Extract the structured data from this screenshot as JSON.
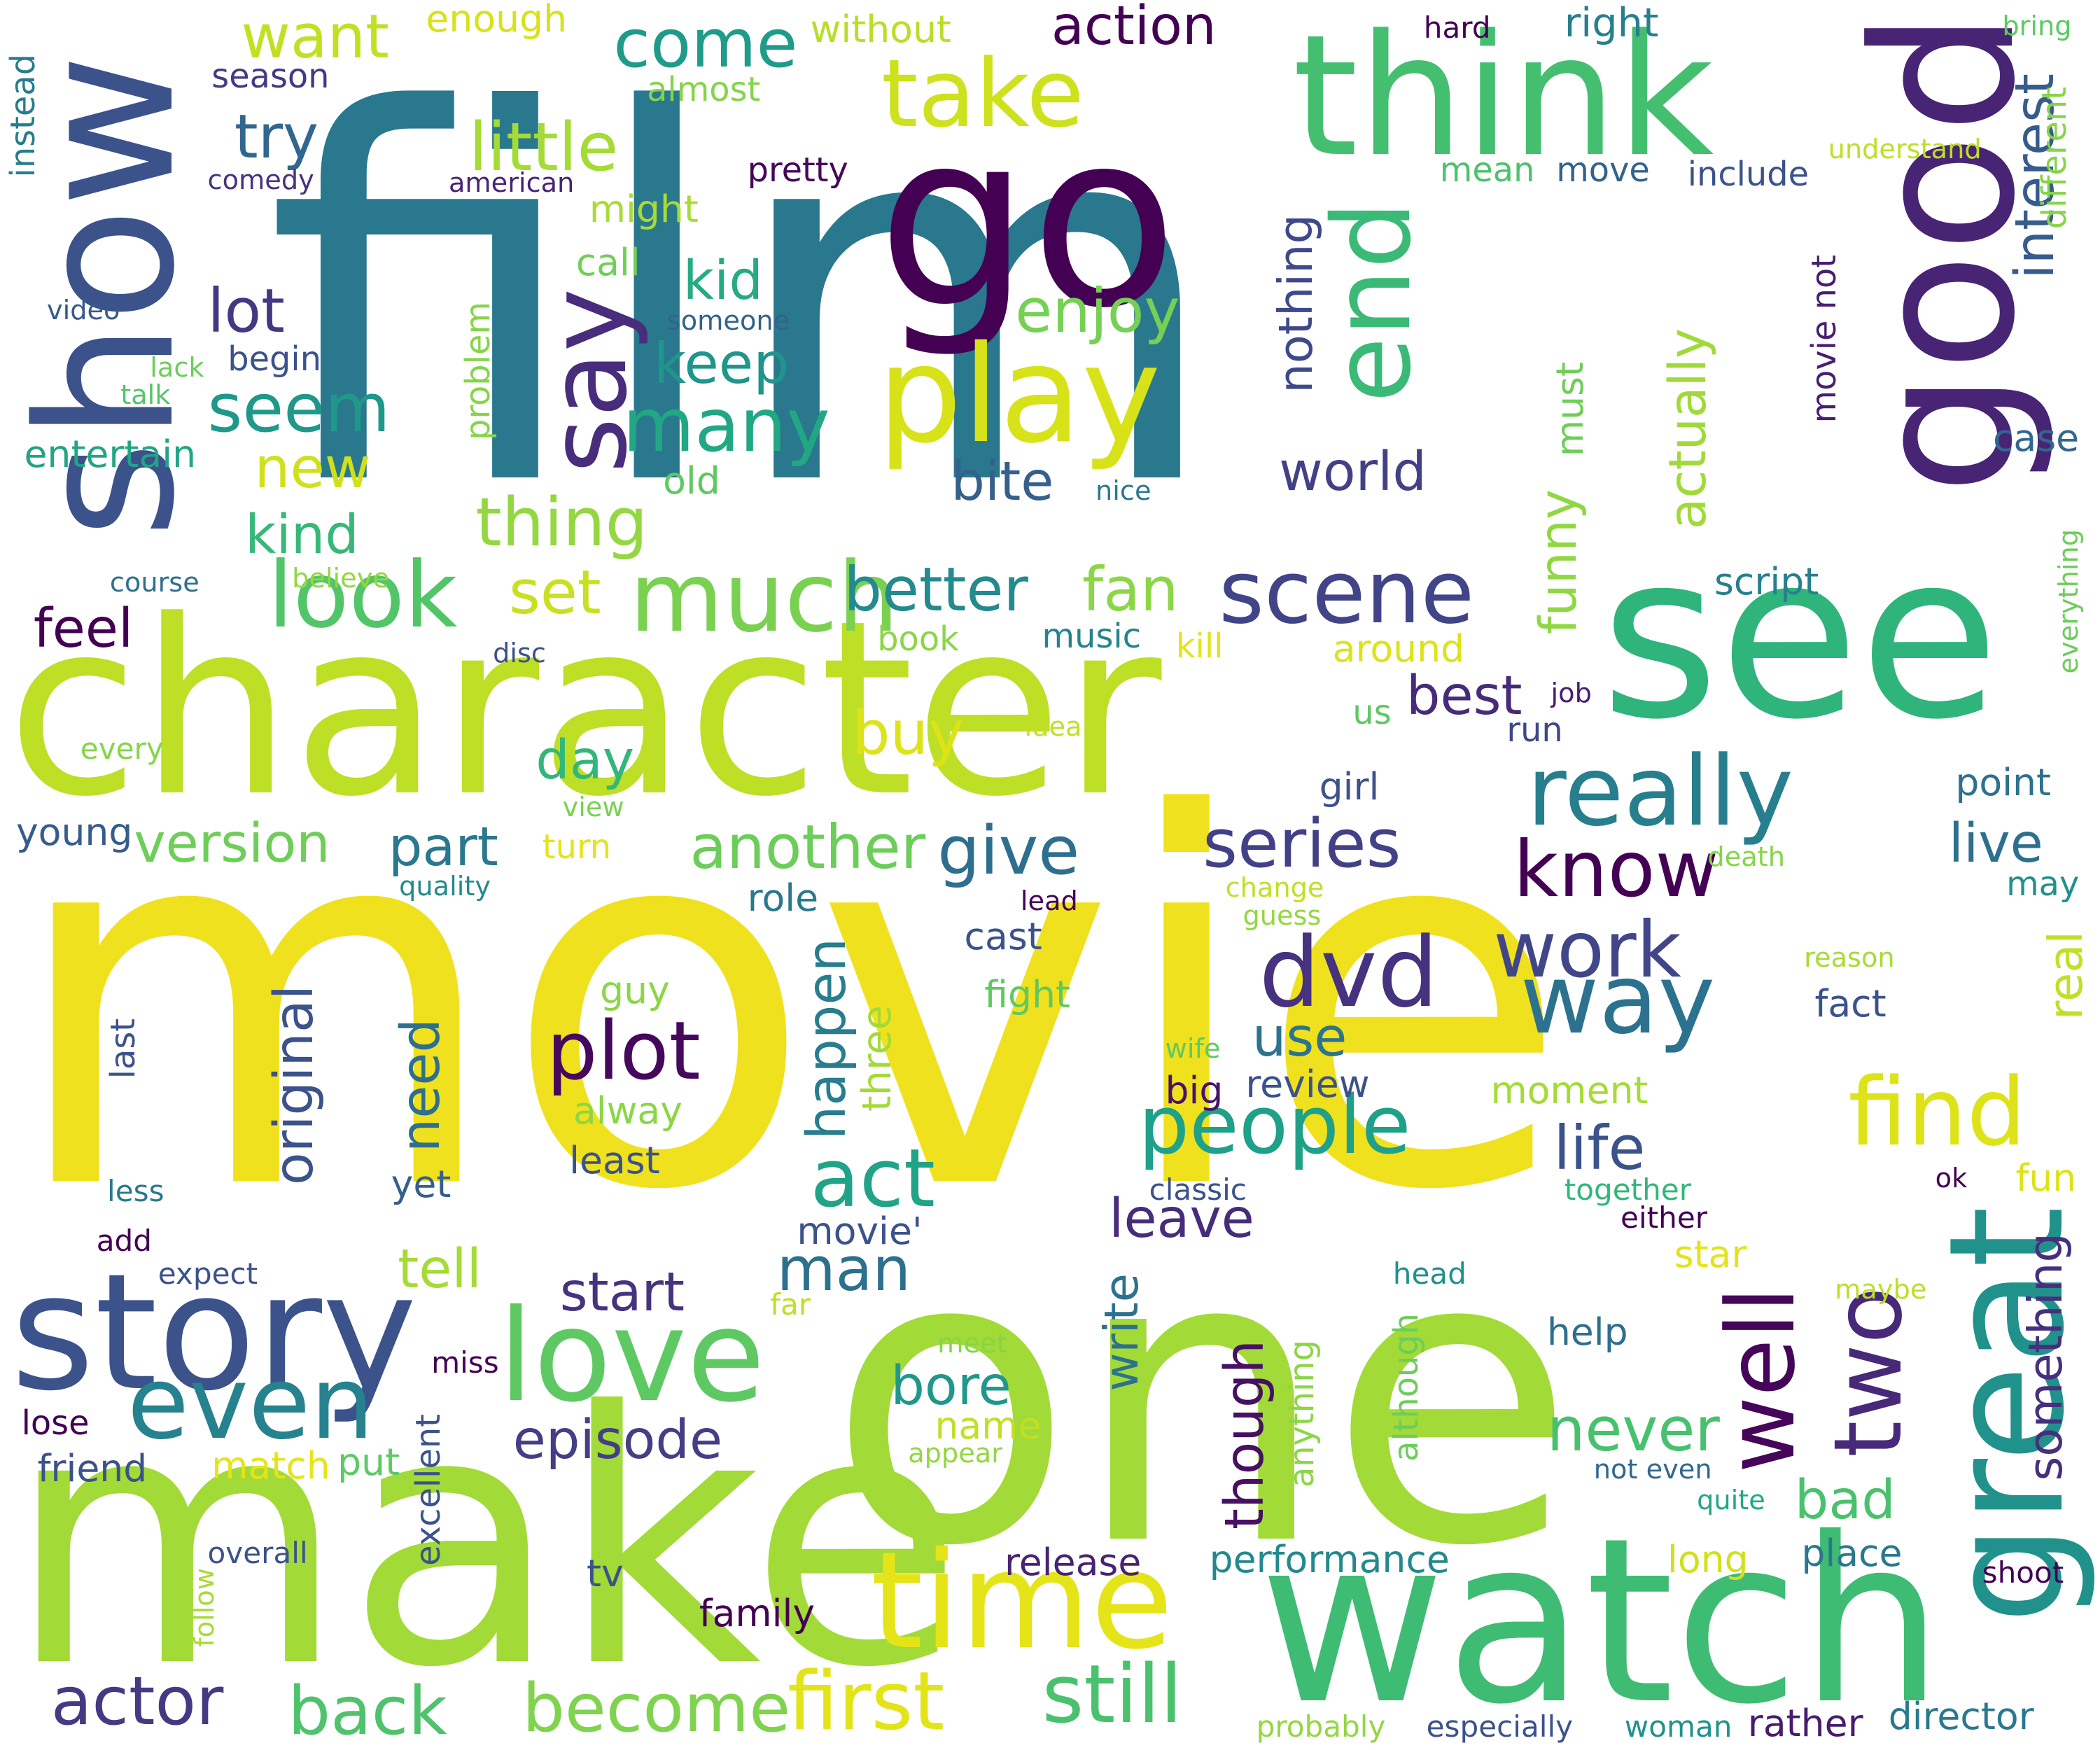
{
  "words": [
    {
      "text": "movie",
      "color": "#f0e11e"
    },
    {
      "text": "film",
      "color": "#2a788e"
    },
    {
      "text": "character",
      "color": "#bddf26"
    },
    {
      "text": "one",
      "color": "#a2da37"
    },
    {
      "text": "make",
      "color": "#a2da37"
    },
    {
      "text": "watch",
      "color": "#3fbc73"
    },
    {
      "text": "see",
      "color": "#2fb47c"
    },
    {
      "text": "go",
      "color": "#440154"
    },
    {
      "text": "good",
      "color": "#482475"
    },
    {
      "text": "show",
      "color": "#3b528b"
    },
    {
      "text": "think",
      "color": "#44bf70"
    },
    {
      "text": "great",
      "color": "#21918c"
    },
    {
      "text": "story",
      "color": "#3b528b"
    },
    {
      "text": "time",
      "color": "#e5e419"
    },
    {
      "text": "love",
      "color": "#5ec962"
    },
    {
      "text": "play",
      "color": "#d8e219"
    },
    {
      "text": "end",
      "color": "#3aba76"
    },
    {
      "text": "say",
      "color": "#472d7b"
    },
    {
      "text": "take",
      "color": "#cde11d"
    },
    {
      "text": "scene",
      "color": "#414487"
    },
    {
      "text": "much",
      "color": "#7ad151"
    },
    {
      "text": "look",
      "color": "#52c569"
    },
    {
      "text": "even",
      "color": "#26828e"
    },
    {
      "text": "really",
      "color": "#277f8e"
    },
    {
      "text": "dvd",
      "color": "#46327e"
    },
    {
      "text": "way",
      "color": "#2c728e"
    },
    {
      "text": "find",
      "color": "#dde318"
    },
    {
      "text": "people",
      "color": "#1fa088"
    },
    {
      "text": "well",
      "color": "#450559"
    },
    {
      "text": "two",
      "color": "#482878"
    },
    {
      "text": "act",
      "color": "#20a386"
    },
    {
      "text": "plot",
      "color": "#46085c"
    },
    {
      "text": "first",
      "color": "#e2e418"
    },
    {
      "text": "still",
      "color": "#4ac16d"
    },
    {
      "text": "actor",
      "color": "#443a83"
    },
    {
      "text": "become",
      "color": "#7fd34e"
    },
    {
      "text": "back",
      "color": "#4ec36b"
    },
    {
      "text": "know",
      "color": "#440154"
    },
    {
      "text": "series",
      "color": "#424086"
    },
    {
      "text": "work",
      "color": "#404688"
    },
    {
      "text": "give",
      "color": "#2e6e8e"
    },
    {
      "text": "another",
      "color": "#6ccd5a"
    },
    {
      "text": "better",
      "color": "#238a8d"
    },
    {
      "text": "fan",
      "color": "#8bd646"
    },
    {
      "text": "set",
      "color": "#c8e020"
    },
    {
      "text": "thing",
      "color": "#93d741"
    },
    {
      "text": "seem",
      "color": "#1f988b"
    },
    {
      "text": "many",
      "color": "#22a785"
    },
    {
      "text": "little",
      "color": "#a5db36"
    },
    {
      "text": "come",
      "color": "#1e9c89"
    },
    {
      "text": "want",
      "color": "#c2df23"
    },
    {
      "text": "try",
      "color": "#31668e"
    },
    {
      "text": "lot",
      "color": "#453781"
    },
    {
      "text": "new",
      "color": "#d0e11c"
    },
    {
      "text": "kind",
      "color": "#37b878"
    },
    {
      "text": "feel",
      "color": "#440154"
    },
    {
      "text": "day",
      "color": "#32b67a"
    },
    {
      "text": "version",
      "color": "#6ece58"
    },
    {
      "text": "part",
      "color": "#2a788e"
    },
    {
      "text": "buy",
      "color": "#dde318"
    },
    {
      "text": "best",
      "color": "#472a7a"
    },
    {
      "text": "bite",
      "color": "#355f8d"
    },
    {
      "text": "world",
      "color": "#424086"
    },
    {
      "text": "enjoy",
      "color": "#75d054"
    },
    {
      "text": "keep",
      "color": "#1f958b"
    },
    {
      "text": "kid",
      "color": "#25ab82"
    },
    {
      "text": "action",
      "color": "#440154"
    },
    {
      "text": "interest",
      "color": "#365c8d"
    },
    {
      "text": "nothing",
      "color": "#3e4989"
    },
    {
      "text": "actually",
      "color": "#a0da39"
    },
    {
      "text": "funny",
      "color": "#90d743"
    },
    {
      "text": "must",
      "color": "#6ece58"
    },
    {
      "text": "original",
      "color": "#3b528b"
    },
    {
      "text": "need",
      "color": "#2e6f8e"
    },
    {
      "text": "happen",
      "color": "#287d8e"
    },
    {
      "text": "three",
      "color": "#a2da37"
    },
    {
      "text": "man",
      "color": "#2d708e"
    },
    {
      "text": "start",
      "color": "#46337f"
    },
    {
      "text": "tell",
      "color": "#a5db36"
    },
    {
      "text": "episode",
      "color": "#433e85"
    },
    {
      "text": "bore",
      "color": "#1f988b"
    },
    {
      "text": "write",
      "color": "#2d718e"
    },
    {
      "text": "though",
      "color": "#471063"
    },
    {
      "text": "leave",
      "color": "#472c7a"
    },
    {
      "text": "life",
      "color": "#3b528b"
    },
    {
      "text": "use",
      "color": "#2c738e"
    },
    {
      "text": "never",
      "color": "#48c16e"
    },
    {
      "text": "bad",
      "color": "#4ac16d"
    },
    {
      "text": "real",
      "color": "#c0df25"
    },
    {
      "text": "something",
      "color": "#46307e"
    },
    {
      "text": "live",
      "color": "#2d708e"
    },
    {
      "text": "performance",
      "color": "#23898e"
    },
    {
      "text": "release",
      "color": "#482374"
    },
    {
      "text": "director",
      "color": "#29798e"
    },
    {
      "text": "rather",
      "color": "#481b6d"
    },
    {
      "text": "long",
      "color": "#d0e11c"
    },
    {
      "text": "place",
      "color": "#2a788e"
    },
    {
      "text": "help",
      "color": "#2e6e8e"
    },
    {
      "text": "fact",
      "color": "#3b528b"
    },
    {
      "text": "fun",
      "color": "#dde318"
    },
    {
      "text": "point",
      "color": "#2c718e"
    },
    {
      "text": "script",
      "color": "#277f8e"
    },
    {
      "text": "case",
      "color": "#31688e"
    },
    {
      "text": "movie not",
      "color": "#481f70"
    },
    {
      "text": "different",
      "color": "#86d549"
    },
    {
      "text": "bring",
      "color": "#5ec962"
    },
    {
      "text": "understand",
      "color": "#bddf26"
    },
    {
      "text": "include",
      "color": "#3b528b"
    },
    {
      "text": "right",
      "color": "#277f8e"
    },
    {
      "text": "hard",
      "color": "#440154"
    },
    {
      "text": "without",
      "color": "#b8de29"
    },
    {
      "text": "enough",
      "color": "#d8e219"
    },
    {
      "text": "season",
      "color": "#443983"
    },
    {
      "text": "comedy",
      "color": "#46337f"
    },
    {
      "text": "american",
      "color": "#482374"
    },
    {
      "text": "pretty",
      "color": "#46075a"
    },
    {
      "text": "might",
      "color": "#a8db34"
    },
    {
      "text": "almost",
      "color": "#84d44b"
    },
    {
      "text": "mean",
      "color": "#4cc26c"
    },
    {
      "text": "move",
      "color": "#33638d"
    },
    {
      "text": "call",
      "color": "#70cf57"
    },
    {
      "text": "someone",
      "color": "#33628d"
    },
    {
      "text": "video",
      "color": "#375a8c"
    },
    {
      "text": "lack",
      "color": "#6ccd5a"
    },
    {
      "text": "begin",
      "color": "#3b528b"
    },
    {
      "text": "talk",
      "color": "#54c568"
    },
    {
      "text": "entertain",
      "color": "#21a585"
    },
    {
      "text": "problem",
      "color": "#86d549"
    },
    {
      "text": "old",
      "color": "#5ec962"
    },
    {
      "text": "nice",
      "color": "#29798e"
    },
    {
      "text": "instead",
      "color": "#287c8e"
    },
    {
      "text": "course",
      "color": "#2c718e"
    },
    {
      "text": "believe",
      "color": "#93d741"
    },
    {
      "text": "disc",
      "color": "#3b528b"
    },
    {
      "text": "book",
      "color": "#8bd646"
    },
    {
      "text": "music",
      "color": "#25848e"
    },
    {
      "text": "kill",
      "color": "#e2e418"
    },
    {
      "text": "around",
      "color": "#dde318"
    },
    {
      "text": "us",
      "color": "#5ec962"
    },
    {
      "text": "job",
      "color": "#481c6e"
    },
    {
      "text": "run",
      "color": "#3f4788"
    },
    {
      "text": "idea",
      "color": "#c2df23"
    },
    {
      "text": "every",
      "color": "#86d549"
    },
    {
      "text": "view",
      "color": "#7ad151"
    },
    {
      "text": "young",
      "color": "#375b8d"
    },
    {
      "text": "turn",
      "color": "#e5e419"
    },
    {
      "text": "quality",
      "color": "#238a8d"
    },
    {
      "text": "girl",
      "color": "#3b528b"
    },
    {
      "text": "role",
      "color": "#2a788e"
    },
    {
      "text": "lead",
      "color": "#440154"
    },
    {
      "text": "cast",
      "color": "#3b528b"
    },
    {
      "text": "change",
      "color": "#c2df23"
    },
    {
      "text": "guess",
      "color": "#93d741"
    },
    {
      "text": "death",
      "color": "#86d549"
    },
    {
      "text": "may",
      "color": "#21918c"
    },
    {
      "text": "reason",
      "color": "#a8db34"
    },
    {
      "text": "guy",
      "color": "#8bd646"
    },
    {
      "text": "fight",
      "color": "#5ec962"
    },
    {
      "text": "wife",
      "color": "#5ec962"
    },
    {
      "text": "moment",
      "color": "#a5db36"
    },
    {
      "text": "review",
      "color": "#3b528b"
    },
    {
      "text": "big",
      "color": "#481467"
    },
    {
      "text": "alway",
      "color": "#8bd646"
    },
    {
      "text": "least",
      "color": "#3b528b"
    },
    {
      "text": "last",
      "color": "#3b528b"
    },
    {
      "text": "yet",
      "color": "#355f8d"
    },
    {
      "text": "less",
      "color": "#29798e"
    },
    {
      "text": "classic",
      "color": "#3b528b"
    },
    {
      "text": "together",
      "color": "#32b67a"
    },
    {
      "text": "ok",
      "color": "#440154"
    },
    {
      "text": "movie'",
      "color": "#3b528b"
    },
    {
      "text": "either",
      "color": "#440154"
    },
    {
      "text": "add",
      "color": "#440154"
    },
    {
      "text": "expect",
      "color": "#3b528b"
    },
    {
      "text": "head",
      "color": "#21918c"
    },
    {
      "text": "star",
      "color": "#e2e418"
    },
    {
      "text": "maybe",
      "color": "#bddf26"
    },
    {
      "text": "far",
      "color": "#bddf26"
    },
    {
      "text": "meet",
      "color": "#86d549"
    },
    {
      "text": "miss",
      "color": "#440154"
    },
    {
      "text": "lose",
      "color": "#440154"
    },
    {
      "text": "name",
      "color": "#c2df23"
    },
    {
      "text": "appear",
      "color": "#93d741"
    },
    {
      "text": "friend",
      "color": "#3b528b"
    },
    {
      "text": "match",
      "color": "#e5e419"
    },
    {
      "text": "put",
      "color": "#5ec962"
    },
    {
      "text": "excellent",
      "color": "#3b528b"
    },
    {
      "text": "anything",
      "color": "#8bd646"
    },
    {
      "text": "although",
      "color": "#6ccd5a"
    },
    {
      "text": "not even",
      "color": "#31688e"
    },
    {
      "text": "quite",
      "color": "#22a785"
    },
    {
      "text": "shoot",
      "color": "#440154"
    },
    {
      "text": "overall",
      "color": "#3b528b"
    },
    {
      "text": "follow",
      "color": "#a8db34"
    },
    {
      "text": "tv",
      "color": "#3b528b"
    },
    {
      "text": "family",
      "color": "#440154"
    },
    {
      "text": "probably",
      "color": "#93d741"
    },
    {
      "text": "especially",
      "color": "#3b528b"
    },
    {
      "text": "woman",
      "color": "#21918c"
    },
    {
      "text": "everything",
      "color": "#6ccd5a"
    }
  ]
}
